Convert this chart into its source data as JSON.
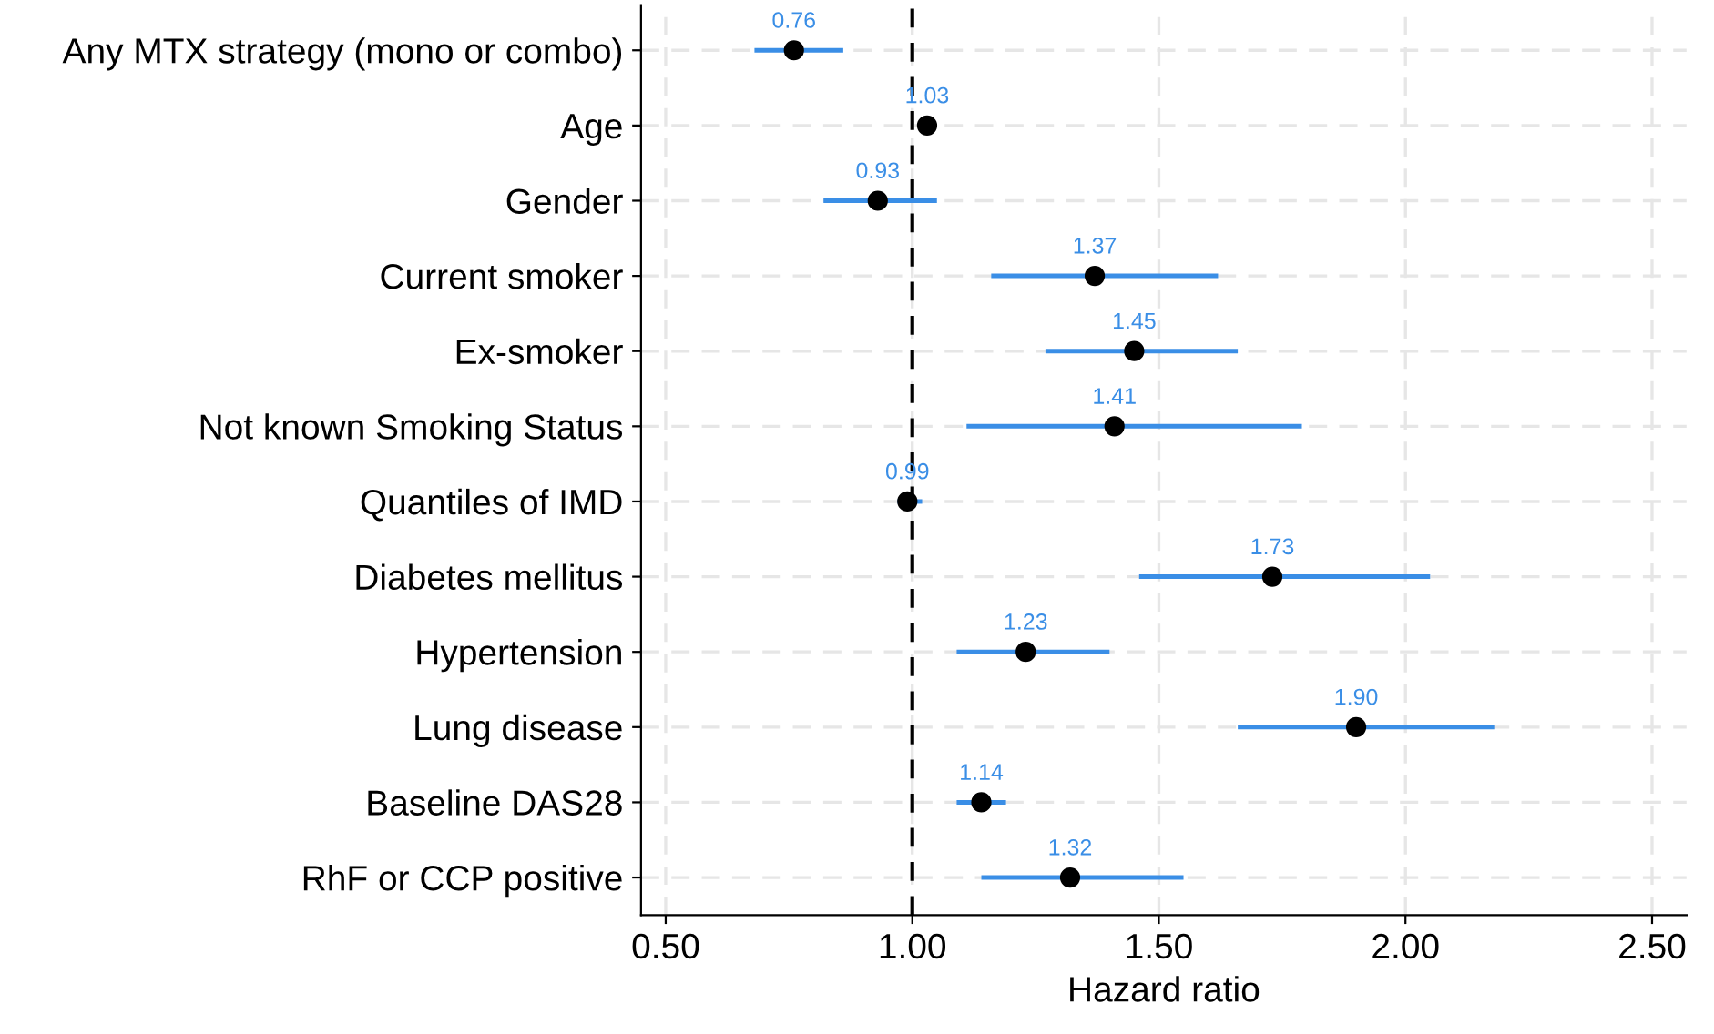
{
  "chart_data": {
    "type": "scatter",
    "orientation": "horizontal",
    "xlabel": "Hazard ratio",
    "categories": [
      "Any MTX strategy (mono or combo)",
      "Age",
      "Gender",
      "Current smoker",
      "Ex-smoker",
      "Not known Smoking Status",
      "Quantiles of IMD",
      "Diabetes mellitus",
      "Hypertension",
      "Lung disease",
      "Baseline DAS28",
      "RhF or CCP positive"
    ],
    "series": [
      {
        "color": "#3a8ee6",
        "colors": [
          "#000000",
          "#000000",
          "#000000",
          "#000000",
          "#000000",
          "#000000",
          "#000000",
          "#000000",
          "#000000",
          "#000000",
          "#000000",
          "#000000"
        ],
        "values": [
          0.76,
          1.03,
          0.93,
          1.37,
          1.45,
          1.41,
          0.99,
          1.73,
          1.23,
          1.9,
          1.14,
          1.32
        ],
        "errors": [
          [
            0.68,
            0.86
          ],
          null,
          [
            0.82,
            1.05
          ],
          [
            1.16,
            1.62
          ],
          [
            1.27,
            1.66
          ],
          [
            1.11,
            1.79
          ],
          [
            0.97,
            1.02
          ],
          [
            1.46,
            2.05
          ],
          [
            1.09,
            1.4
          ],
          [
            1.66,
            2.18
          ],
          [
            1.09,
            1.19
          ],
          [
            1.14,
            1.55
          ]
        ],
        "value_labels": [
          "0.76",
          "1.03",
          "0.93",
          "1.37",
          "1.45",
          "1.41",
          "0.99",
          "1.73",
          "1.23",
          "1.90",
          "1.14",
          "1.32"
        ]
      }
    ],
    "xlim": [
      0.45,
      2.57
    ],
    "xticks": [
      {
        "value": 0.5,
        "label": "0.50"
      },
      {
        "value": 1.0,
        "label": "1.00"
      },
      {
        "value": 1.5,
        "label": "1.50"
      },
      {
        "value": 2.0,
        "label": "2.00"
      },
      {
        "value": 2.5,
        "label": "2.50"
      }
    ],
    "ref_lines": [
      {
        "axis": "x",
        "value": 1.0,
        "label": null,
        "color": "#000000",
        "line_style": "dashed"
      }
    ],
    "grid": true,
    "marker": "circle"
  }
}
